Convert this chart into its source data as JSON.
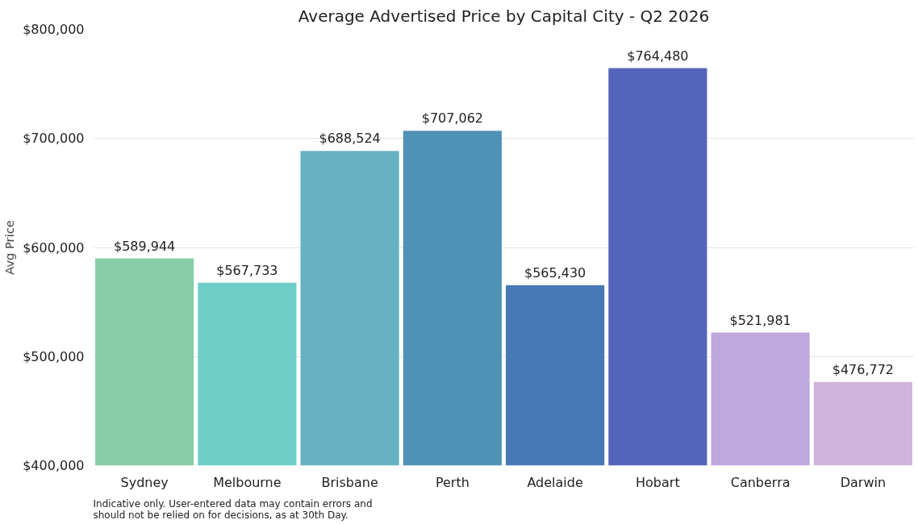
{
  "chart_data": {
    "type": "bar",
    "title": "Average Advertised Price by Capital City - Q2 2026",
    "ylabel": "Avg Price",
    "categories": [
      "Sydney",
      "Melbourne",
      "Brisbane",
      "Perth",
      "Adelaide",
      "Hobart",
      "Canberra",
      "Darwin"
    ],
    "values": [
      589944,
      567733,
      688524,
      707062,
      565430,
      764480,
      521981,
      476772
    ],
    "colors": [
      "#86cda8",
      "#6fcdc8",
      "#66b2c2",
      "#5092b6",
      "#4779b5",
      "#5565bc",
      "#bea8dc",
      "#cfb4dc"
    ],
    "value_labels": [
      "$589,944",
      "$567,733",
      "$688,524",
      "$707,062",
      "$565,430",
      "$764,480",
      "$521,981",
      "$476,772"
    ],
    "ylim": [
      400000,
      800000
    ],
    "yticks": [
      {
        "value": 400000,
        "label": "$400,000"
      },
      {
        "value": 500000,
        "label": "$500,000"
      },
      {
        "value": 600000,
        "label": "$600,000"
      },
      {
        "value": 700000,
        "label": "$700,000"
      },
      {
        "value": 800000,
        "label": "$800,000"
      }
    ],
    "grid": "y",
    "annotations": [
      "Indicative only. User-entered data may contain errors and\nshould not be relied on for decisions, as at 30th Day."
    ]
  }
}
